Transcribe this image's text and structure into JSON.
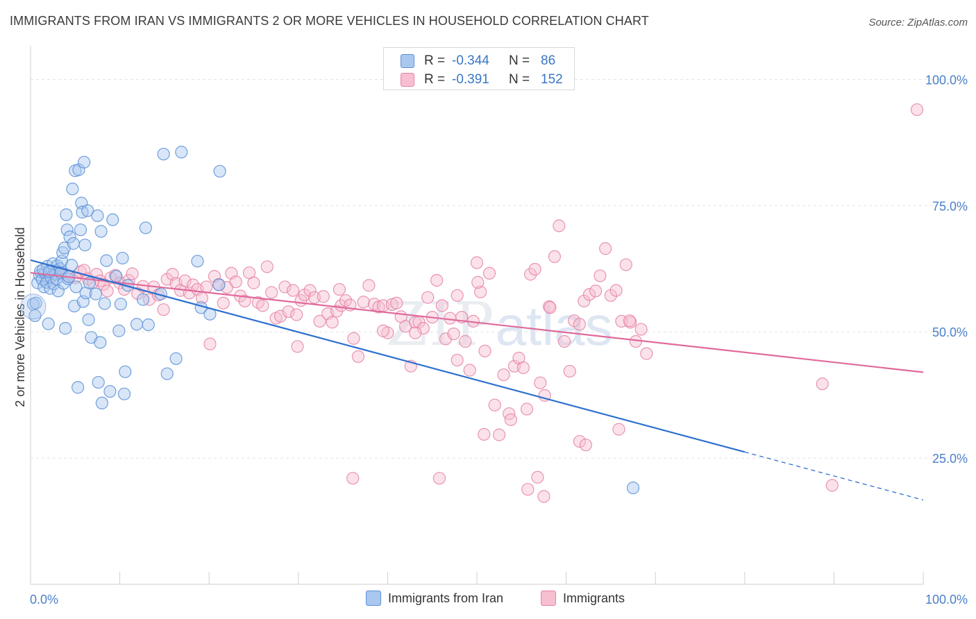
{
  "header": {
    "title": "IMMIGRANTS FROM IRAN VS IMMIGRANTS 2 OR MORE VEHICLES IN HOUSEHOLD CORRELATION CHART",
    "source": "Source: ZipAtlas.com"
  },
  "watermark": {
    "zip": "ZIP",
    "atlas": "atlas"
  },
  "stats": {
    "rows": [
      {
        "r_label": "R =",
        "r_value": "-0.344",
        "n_label": "N =",
        "n_value": "86",
        "color": "#a9c7ef",
        "stroke": "#5b8fd6"
      },
      {
        "r_label": "R =",
        "r_value": "-0.391",
        "n_label": "N =",
        "n_value": "152",
        "color": "#f7bfd0",
        "stroke": "#e583a5"
      }
    ]
  },
  "legend": {
    "items": [
      {
        "label": "Immigrants from Iran",
        "color": "#a9c7ef",
        "stroke": "#5b8fd6"
      },
      {
        "label": "Immigrants",
        "color": "#f7bfd0",
        "stroke": "#e583a5"
      }
    ]
  },
  "chart_data": {
    "type": "scatter",
    "title": "IMMIGRANTS FROM IRAN VS IMMIGRANTS 2 OR MORE VEHICLES IN HOUSEHOLD CORRELATION CHART",
    "xlabel": "",
    "ylabel": "2 or more Vehicles in Household",
    "xlim": [
      0,
      100
    ],
    "ylim": [
      0,
      105
    ],
    "x_tick_labels": [
      "0.0%",
      "100.0%"
    ],
    "y_ticks": [
      25,
      50,
      75,
      100
    ],
    "y_tick_labels": [
      "25.0%",
      "50.0%",
      "75.0%",
      "100.0%"
    ],
    "grid": true,
    "legend_position": "bottom",
    "series": [
      {
        "name": "Immigrants from Iran",
        "color": "#a9c7ef",
        "stroke": "#5b8fd6",
        "line_color": "#2e6fcf",
        "trend": {
          "x0": 0,
          "y0": 64.2,
          "x1": 80,
          "y1": 26.2,
          "dash_to_x": 100,
          "dash_to_y": 16.7
        },
        "points": [
          [
            0.3,
            55.5
          ],
          [
            0.5,
            53.2
          ],
          [
            0.6,
            55.7
          ],
          [
            0.8,
            59.7
          ],
          [
            1.0,
            61.2
          ],
          [
            1.1,
            62.0
          ],
          [
            1.3,
            60.4
          ],
          [
            1.5,
            58.9
          ],
          [
            1.6,
            61.7
          ],
          [
            1.8,
            59.8
          ],
          [
            1.9,
            63.0
          ],
          [
            2.0,
            51.6
          ],
          [
            2.2,
            58.6
          ],
          [
            2.3,
            60.8
          ],
          [
            2.4,
            62.1
          ],
          [
            2.5,
            63.5
          ],
          [
            2.6,
            59.5
          ],
          [
            2.8,
            61.4
          ],
          [
            2.9,
            60.5
          ],
          [
            3.0,
            63.1
          ],
          [
            3.1,
            58.1
          ],
          [
            3.3,
            62.5
          ],
          [
            3.4,
            61.7
          ],
          [
            3.5,
            64.0
          ],
          [
            3.6,
            65.7
          ],
          [
            3.7,
            59.6
          ],
          [
            3.8,
            66.6
          ],
          [
            3.9,
            50.7
          ],
          [
            4.0,
            73.2
          ],
          [
            4.1,
            70.2
          ],
          [
            4.2,
            60.5
          ],
          [
            4.3,
            60.9
          ],
          [
            4.4,
            68.8
          ],
          [
            4.6,
            63.2
          ],
          [
            4.7,
            78.3
          ],
          [
            4.8,
            67.5
          ],
          [
            4.9,
            55.1
          ],
          [
            5.0,
            81.9
          ],
          [
            5.1,
            58.9
          ],
          [
            5.3,
            39.0
          ],
          [
            5.4,
            82.1
          ],
          [
            5.6,
            70.2
          ],
          [
            5.7,
            75.5
          ],
          [
            5.8,
            73.7
          ],
          [
            5.9,
            56.0
          ],
          [
            6.0,
            83.6
          ],
          [
            6.1,
            67.2
          ],
          [
            6.2,
            57.7
          ],
          [
            6.4,
            74.0
          ],
          [
            6.5,
            52.4
          ],
          [
            6.6,
            59.7
          ],
          [
            6.8,
            48.9
          ],
          [
            7.3,
            57.5
          ],
          [
            7.5,
            73.0
          ],
          [
            7.6,
            40.0
          ],
          [
            7.8,
            47.9
          ],
          [
            7.9,
            69.9
          ],
          [
            8.0,
            35.9
          ],
          [
            8.3,
            55.6
          ],
          [
            8.5,
            64.1
          ],
          [
            8.9,
            38.2
          ],
          [
            9.2,
            72.2
          ],
          [
            9.6,
            61.0
          ],
          [
            9.9,
            50.2
          ],
          [
            10.1,
            55.5
          ],
          [
            10.3,
            64.6
          ],
          [
            10.5,
            37.7
          ],
          [
            10.6,
            42.1
          ],
          [
            10.9,
            59.2
          ],
          [
            11.9,
            51.5
          ],
          [
            12.9,
            70.6
          ],
          [
            13.2,
            51.4
          ],
          [
            14.6,
            57.5
          ],
          [
            15.3,
            41.7
          ],
          [
            16.3,
            44.7
          ],
          [
            16.9,
            85.6
          ],
          [
            18.7,
            64.0
          ],
          [
            19.1,
            54.8
          ],
          [
            20.1,
            53.5
          ],
          [
            21.1,
            59.3
          ],
          [
            21.2,
            81.8
          ],
          [
            12.6,
            56.4
          ],
          [
            14.9,
            85.2
          ],
          [
            1.4,
            62.3
          ],
          [
            2.1,
            61.9
          ],
          [
            67.5,
            19.1
          ]
        ]
      },
      {
        "name": "Immigrants",
        "color": "#f7bfd0",
        "stroke": "#e583a5",
        "line_color": "#e0699a",
        "trend": {
          "x0": 0,
          "y0": 61.7,
          "x1": 100,
          "y1": 42.0
        },
        "points": [
          [
            2.0,
            60.3
          ],
          [
            3.0,
            62.0
          ],
          [
            4.1,
            61.2
          ],
          [
            5.0,
            60.7
          ],
          [
            5.6,
            61.9
          ],
          [
            6.0,
            62.2
          ],
          [
            6.4,
            60.5
          ],
          [
            7.0,
            59.8
          ],
          [
            7.4,
            61.4
          ],
          [
            7.8,
            60.1
          ],
          [
            8.2,
            59.4
          ],
          [
            8.6,
            58.1
          ],
          [
            9.0,
            60.7
          ],
          [
            9.5,
            61.2
          ],
          [
            10.0,
            59.7
          ],
          [
            10.5,
            58.4
          ],
          [
            11.0,
            60.2
          ],
          [
            11.4,
            61.5
          ],
          [
            12.0,
            57.6
          ],
          [
            12.6,
            59.0
          ],
          [
            13.3,
            56.4
          ],
          [
            13.8,
            58.9
          ],
          [
            14.3,
            57.3
          ],
          [
            14.9,
            54.4
          ],
          [
            15.3,
            60.4
          ],
          [
            15.9,
            61.4
          ],
          [
            16.3,
            59.6
          ],
          [
            16.8,
            58.2
          ],
          [
            17.3,
            60.1
          ],
          [
            17.8,
            57.7
          ],
          [
            18.2,
            59.3
          ],
          [
            18.7,
            58.4
          ],
          [
            19.2,
            56.7
          ],
          [
            19.7,
            58.9
          ],
          [
            20.1,
            47.6
          ],
          [
            20.6,
            61.0
          ],
          [
            21.1,
            59.4
          ],
          [
            21.6,
            55.7
          ],
          [
            22.0,
            58.8
          ],
          [
            22.5,
            61.6
          ],
          [
            23.0,
            59.9
          ],
          [
            23.5,
            57.1
          ],
          [
            24.0,
            56.1
          ],
          [
            24.5,
            61.7
          ],
          [
            25.0,
            59.7
          ],
          [
            25.5,
            55.8
          ],
          [
            26.0,
            55.2
          ],
          [
            26.5,
            62.9
          ],
          [
            27.0,
            57.8
          ],
          [
            27.5,
            52.7
          ],
          [
            28.0,
            53.1
          ],
          [
            28.5,
            58.9
          ],
          [
            28.9,
            54.0
          ],
          [
            29.4,
            58.2
          ],
          [
            29.8,
            53.4
          ],
          [
            30.3,
            56.2
          ],
          [
            30.7,
            57.3
          ],
          [
            31.3,
            58.2
          ],
          [
            31.8,
            56.8
          ],
          [
            32.4,
            52.1
          ],
          [
            32.8,
            57.0
          ],
          [
            33.3,
            53.6
          ],
          [
            33.8,
            51.9
          ],
          [
            34.3,
            54.1
          ],
          [
            34.8,
            55.2
          ],
          [
            35.3,
            56.2
          ],
          [
            35.8,
            55.3
          ],
          [
            36.2,
            48.7
          ],
          [
            36.7,
            45.1
          ],
          [
            37.3,
            55.9
          ],
          [
            37.9,
            59.2
          ],
          [
            38.5,
            55.5
          ],
          [
            39.0,
            54.9
          ],
          [
            39.5,
            55.2
          ],
          [
            40.0,
            49.8
          ],
          [
            40.5,
            55.4
          ],
          [
            41.0,
            55.7
          ],
          [
            41.5,
            53.0
          ],
          [
            42.0,
            51.1
          ],
          [
            42.6,
            43.2
          ],
          [
            43.1,
            51.9
          ],
          [
            43.5,
            51.9
          ],
          [
            44.0,
            50.7
          ],
          [
            44.5,
            56.8
          ],
          [
            45.0,
            52.9
          ],
          [
            45.5,
            60.2
          ],
          [
            46.1,
            55.2
          ],
          [
            46.5,
            48.6
          ],
          [
            47.0,
            52.7
          ],
          [
            47.4,
            49.6
          ],
          [
            47.8,
            44.4
          ],
          [
            48.3,
            52.9
          ],
          [
            48.7,
            48.1
          ],
          [
            49.2,
            42.4
          ],
          [
            49.6,
            52.1
          ],
          [
            50.0,
            63.7
          ],
          [
            50.4,
            57.9
          ],
          [
            50.9,
            46.2
          ],
          [
            51.4,
            61.6
          ],
          [
            52.0,
            35.5
          ],
          [
            52.5,
            29.6
          ],
          [
            53.0,
            41.5
          ],
          [
            53.6,
            33.8
          ],
          [
            54.2,
            43.2
          ],
          [
            54.7,
            44.8
          ],
          [
            55.2,
            42.9
          ],
          [
            55.6,
            34.7
          ],
          [
            56.0,
            61.4
          ],
          [
            56.5,
            62.4
          ],
          [
            57.1,
            39.9
          ],
          [
            57.6,
            37.4
          ],
          [
            58.1,
            55.0
          ],
          [
            58.7,
            64.9
          ],
          [
            59.2,
            71.0
          ],
          [
            59.8,
            48.1
          ],
          [
            60.4,
            42.2
          ],
          [
            60.9,
            52.2
          ],
          [
            61.5,
            51.5
          ],
          [
            62.0,
            56.1
          ],
          [
            62.6,
            57.4
          ],
          [
            63.3,
            58.1
          ],
          [
            63.8,
            61.1
          ],
          [
            64.4,
            66.5
          ],
          [
            65.0,
            57.2
          ],
          [
            65.6,
            58.2
          ],
          [
            66.2,
            52.1
          ],
          [
            66.7,
            63.3
          ],
          [
            67.2,
            51.9
          ],
          [
            67.8,
            48.1
          ],
          [
            68.4,
            50.5
          ],
          [
            69.0,
            45.7
          ],
          [
            43.1,
            49.8
          ],
          [
            45.8,
            21.0
          ],
          [
            50.8,
            29.7
          ],
          [
            53.8,
            32.6
          ],
          [
            55.7,
            18.8
          ],
          [
            56.8,
            21.2
          ],
          [
            57.5,
            17.4
          ],
          [
            61.5,
            28.3
          ],
          [
            62.2,
            27.6
          ],
          [
            65.9,
            30.7
          ],
          [
            36.1,
            21.0
          ],
          [
            39.5,
            50.2
          ],
          [
            29.9,
            47.1
          ],
          [
            50.1,
            59.8
          ],
          [
            34.6,
            58.4
          ],
          [
            47.8,
            57.2
          ],
          [
            58.2,
            54.8
          ],
          [
            88.7,
            39.7
          ],
          [
            89.8,
            19.6
          ],
          [
            99.3,
            94.0
          ],
          [
            67.1,
            52.2
          ]
        ]
      }
    ]
  }
}
